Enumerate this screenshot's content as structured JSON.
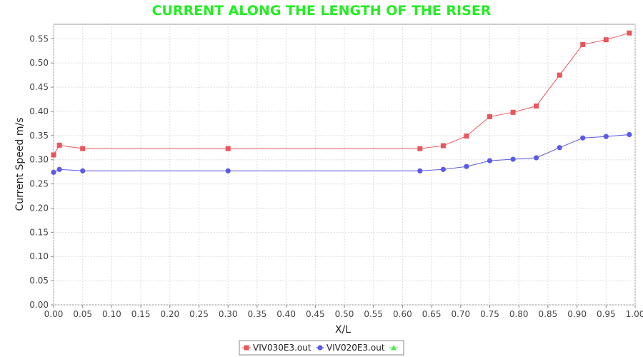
{
  "chart_data": {
    "type": "line",
    "title": "CURRENT ALONG THE LENGTH OF THE RISER",
    "xlabel": "X/L",
    "ylabel": "Current Speed m/s",
    "xlim": [
      0.0,
      1.0
    ],
    "ylim": [
      0.0,
      0.58
    ],
    "xticks": [
      "0.00",
      "0.05",
      "0.10",
      "0.15",
      "0.20",
      "0.25",
      "0.30",
      "0.35",
      "0.40",
      "0.45",
      "0.50",
      "0.55",
      "0.60",
      "0.65",
      "0.70",
      "0.75",
      "0.80",
      "0.85",
      "0.90",
      "0.95",
      "1.00"
    ],
    "yticks": [
      "0.00",
      "0.05",
      "0.10",
      "0.15",
      "0.20",
      "0.25",
      "0.30",
      "0.35",
      "0.40",
      "0.45",
      "0.50",
      "0.55"
    ],
    "grid": true,
    "legend_position": "bottom-center",
    "series": [
      {
        "name": "VIV030E3.out",
        "color": "#e8555a",
        "marker": "square",
        "x": [
          0.0,
          0.01,
          0.05,
          0.3,
          0.63,
          0.67,
          0.71,
          0.75,
          0.79,
          0.83,
          0.87,
          0.91,
          0.95,
          0.99
        ],
        "y": [
          0.31,
          0.33,
          0.323,
          0.323,
          0.323,
          0.329,
          0.349,
          0.389,
          0.398,
          0.411,
          0.475,
          0.538,
          0.548,
          0.562
        ]
      },
      {
        "name": "VIV020E3.out",
        "color": "#5a5ae8",
        "marker": "circle",
        "x": [
          0.0,
          0.01,
          0.05,
          0.3,
          0.63,
          0.67,
          0.71,
          0.75,
          0.79,
          0.83,
          0.87,
          0.91,
          0.95,
          0.99
        ],
        "y": [
          0.274,
          0.28,
          0.277,
          0.277,
          0.277,
          0.28,
          0.286,
          0.298,
          0.301,
          0.304,
          0.325,
          0.345,
          0.348,
          0.352
        ]
      },
      {
        "name": "",
        "color": "#55e855",
        "marker": "triangle",
        "x": [],
        "y": []
      }
    ]
  }
}
